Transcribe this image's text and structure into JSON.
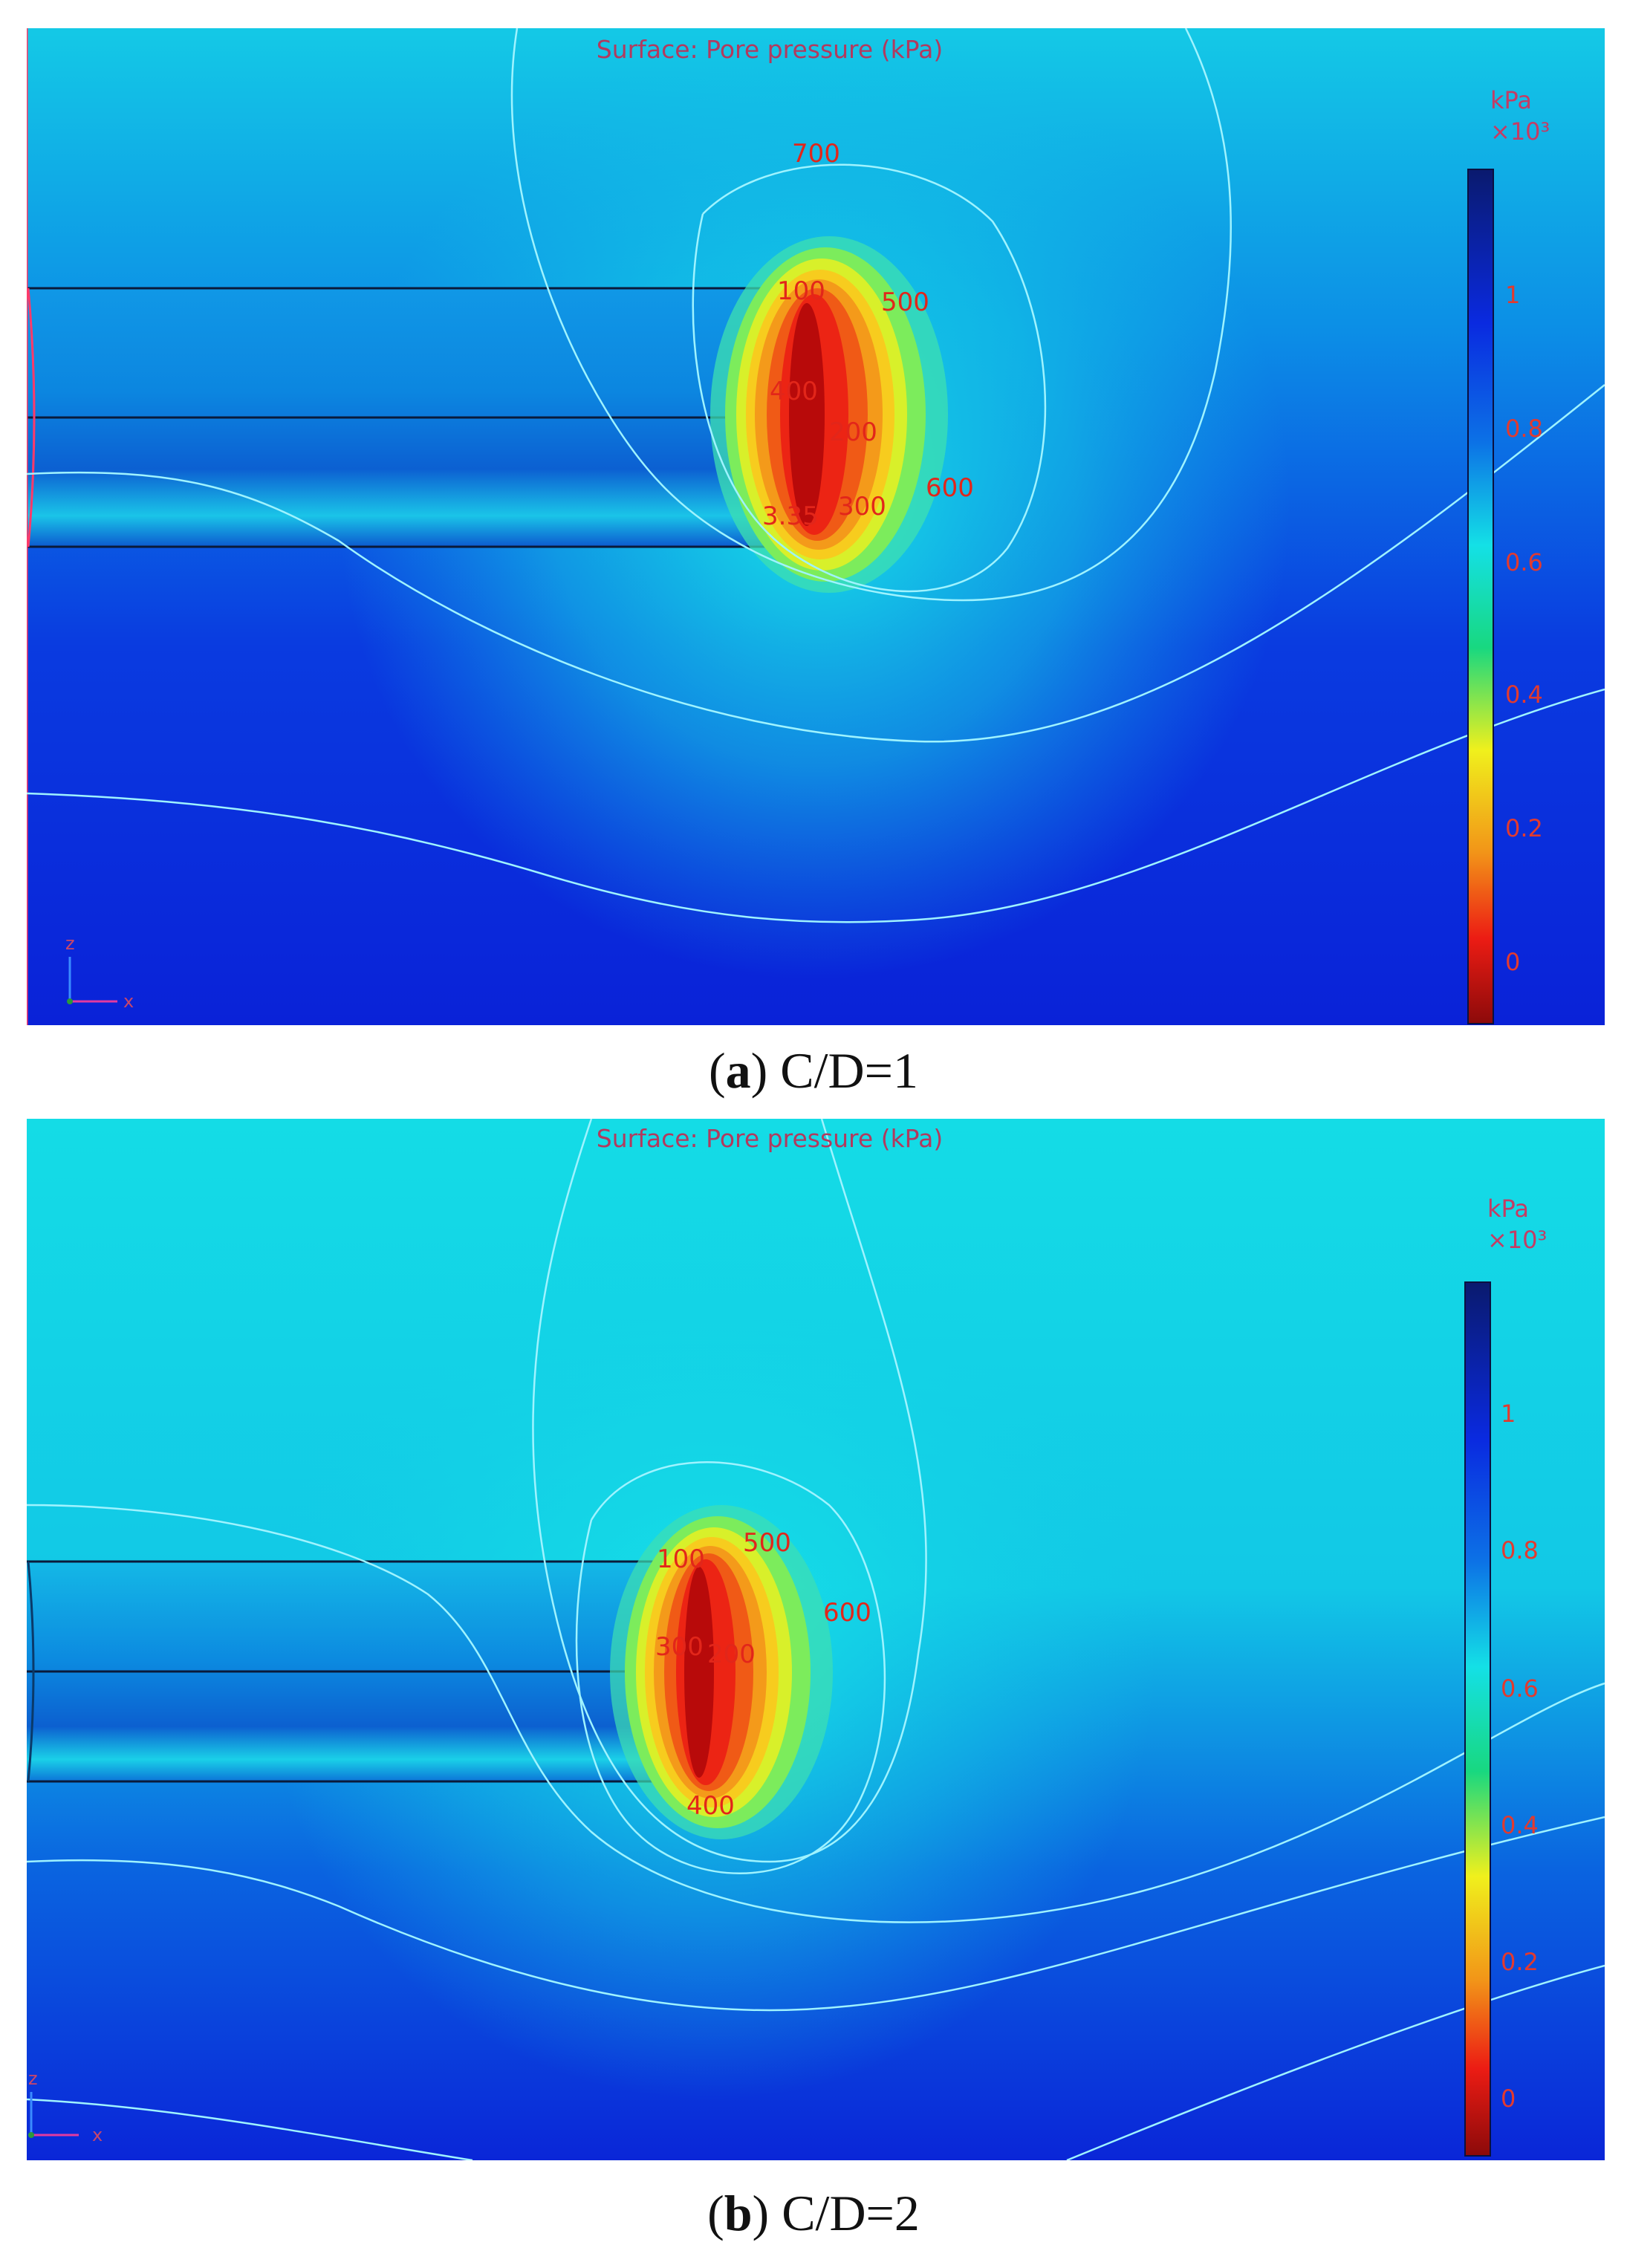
{
  "colors": {
    "far_field": "#0a24dc",
    "near_field": "#12d8e6",
    "low_pressure": "#c80a0a",
    "contour_line": "#9ff3ff",
    "label_red": "#e2261a"
  },
  "colorbar": {
    "unit": "kPa",
    "multiplier": "×10³",
    "ticks": [
      "1",
      "0.8",
      "0.6",
      "0.4",
      "0.2",
      "0"
    ],
    "colormap": "rainbow (red = low, dark blue = high)"
  },
  "panels": [
    {
      "letter": "a",
      "caption": " C/D=1",
      "plot_title": "Surface: Pore pressure (kPa)",
      "contour_labels": [
        "700",
        "100",
        "500",
        "400",
        "200",
        "600",
        "3.35",
        "300"
      ],
      "axes": {
        "z": "z",
        "x": "x"
      }
    },
    {
      "letter": "b",
      "caption": " C/D=2",
      "plot_title": "Surface: Pore pressure (kPa)",
      "contour_labels": [
        "500",
        "100",
        "600",
        "300",
        "200",
        "400"
      ],
      "axes": {
        "z": "z",
        "x": "x"
      }
    }
  ]
}
